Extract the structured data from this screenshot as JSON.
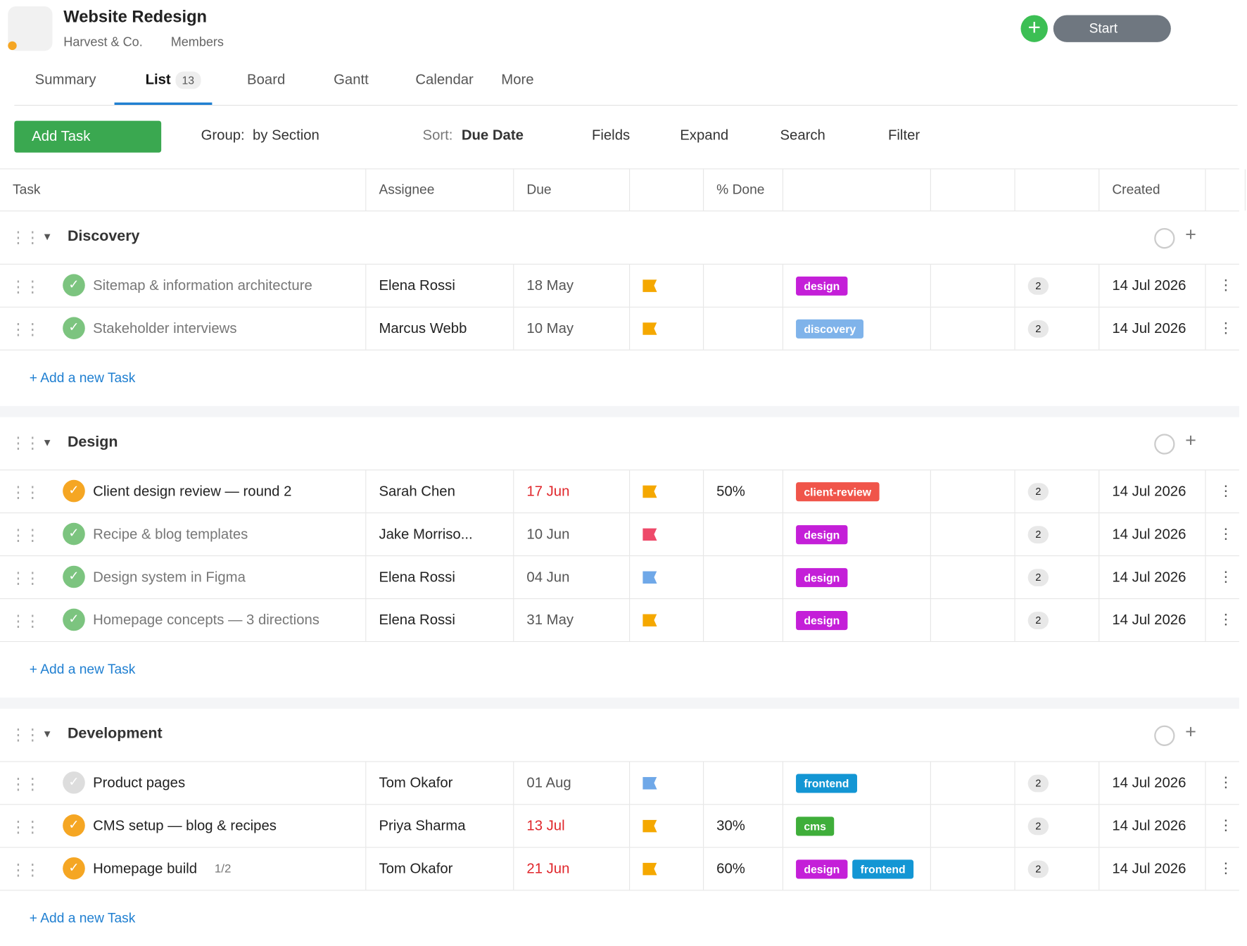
{
  "header": {
    "title": "Website Redesign",
    "org": "Harvest & Co.",
    "members": "Members",
    "start": "Start"
  },
  "tabs": [
    {
      "label": "Summary"
    },
    {
      "label": "List",
      "count": "13",
      "active": true
    },
    {
      "label": "Board"
    },
    {
      "label": "Gantt"
    },
    {
      "label": "Calendar"
    },
    {
      "label": "More"
    }
  ],
  "toolbar": {
    "add_task": "Add Task",
    "group_label": "Group:",
    "group_value": "by Section",
    "sort_label": "Sort:",
    "sort_value": "Due Date",
    "fields": "Fields",
    "expand": "Expand",
    "search": "Search",
    "filter": "Filter"
  },
  "columns": {
    "task": "Task",
    "assignee": "Assignee",
    "due": "Due",
    "done": "% Done",
    "created": "Created"
  },
  "sections": [
    {
      "name": "Discovery",
      "add": "+ Add a new Task",
      "tasks": [
        {
          "name": "Sitemap & information architecture",
          "status": "done",
          "assignee": "Elena Rossi",
          "due": "18 May",
          "flag": "#f5a800",
          "tags": [
            {
              "label": "design",
              "color": "#c41fd8"
            }
          ],
          "comments": "2",
          "created": "14 Jul 2026"
        },
        {
          "name": "Stakeholder interviews",
          "status": "done",
          "assignee": "Marcus Webb",
          "due": "10 May",
          "flag": "#f5a800",
          "tags": [
            {
              "label": "discovery",
              "color": "#7fb3ea"
            }
          ],
          "comments": "2",
          "created": "14 Jul 2026"
        }
      ]
    },
    {
      "name": "Design",
      "add": "+ Add a new Task",
      "tasks": [
        {
          "name": "Client design review — round 2",
          "status": "progress",
          "assignee": "Sarah Chen",
          "due": "17 Jun",
          "overdue": true,
          "flag": "#f5a800",
          "done": "50%",
          "tags": [
            {
              "label": "client-review",
              "color": "#f0554a"
            }
          ],
          "comments": "2",
          "created": "14 Jul 2026"
        },
        {
          "name": "Recipe & blog templates",
          "status": "done",
          "assignee": "Jake Morriso...",
          "due": "10 Jun",
          "flag": "#ee4a6a",
          "tags": [
            {
              "label": "design",
              "color": "#c41fd8"
            }
          ],
          "comments": "2",
          "created": "14 Jul 2026"
        },
        {
          "name": "Design system in Figma",
          "status": "done",
          "assignee": "Elena Rossi",
          "due": "04 Jun",
          "flag": "#6fa8e8",
          "tags": [
            {
              "label": "design",
              "color": "#c41fd8"
            }
          ],
          "comments": "2",
          "created": "14 Jul 2026"
        },
        {
          "name": "Homepage concepts — 3 directions",
          "status": "done",
          "assignee": "Elena Rossi",
          "due": "31 May",
          "flag": "#f5a800",
          "tags": [
            {
              "label": "design",
              "color": "#c41fd8"
            }
          ],
          "comments": "2",
          "created": "14 Jul 2026"
        }
      ]
    },
    {
      "name": "Development",
      "add": "+ Add a new Task",
      "tasks": [
        {
          "name": "Product pages",
          "status": "open",
          "assignee": "Tom Okafor",
          "due": "01 Aug",
          "flag": "#6fa8e8",
          "tags": [
            {
              "label": "frontend",
              "color": "#1396d4"
            }
          ],
          "comments": "2",
          "created": "14 Jul 2026"
        },
        {
          "name": "CMS setup — blog & recipes",
          "status": "progress",
          "assignee": "Priya Sharma",
          "due": "13 Jul",
          "overdue": true,
          "flag": "#f5a800",
          "done": "30%",
          "tags": [
            {
              "label": "cms",
              "color": "#3fae3a"
            }
          ],
          "comments": "2",
          "created": "14 Jul 2026"
        },
        {
          "name": "Homepage build",
          "status": "progress",
          "subtasks": "1/2",
          "assignee": "Tom Okafor",
          "due": "21 Jun",
          "overdue": true,
          "flag": "#f5a800",
          "done": "60%",
          "tags": [
            {
              "label": "design",
              "color": "#c41fd8"
            },
            {
              "label": "frontend",
              "color": "#1396d4"
            }
          ],
          "comments": "2",
          "created": "14 Jul 2026"
        }
      ]
    }
  ]
}
